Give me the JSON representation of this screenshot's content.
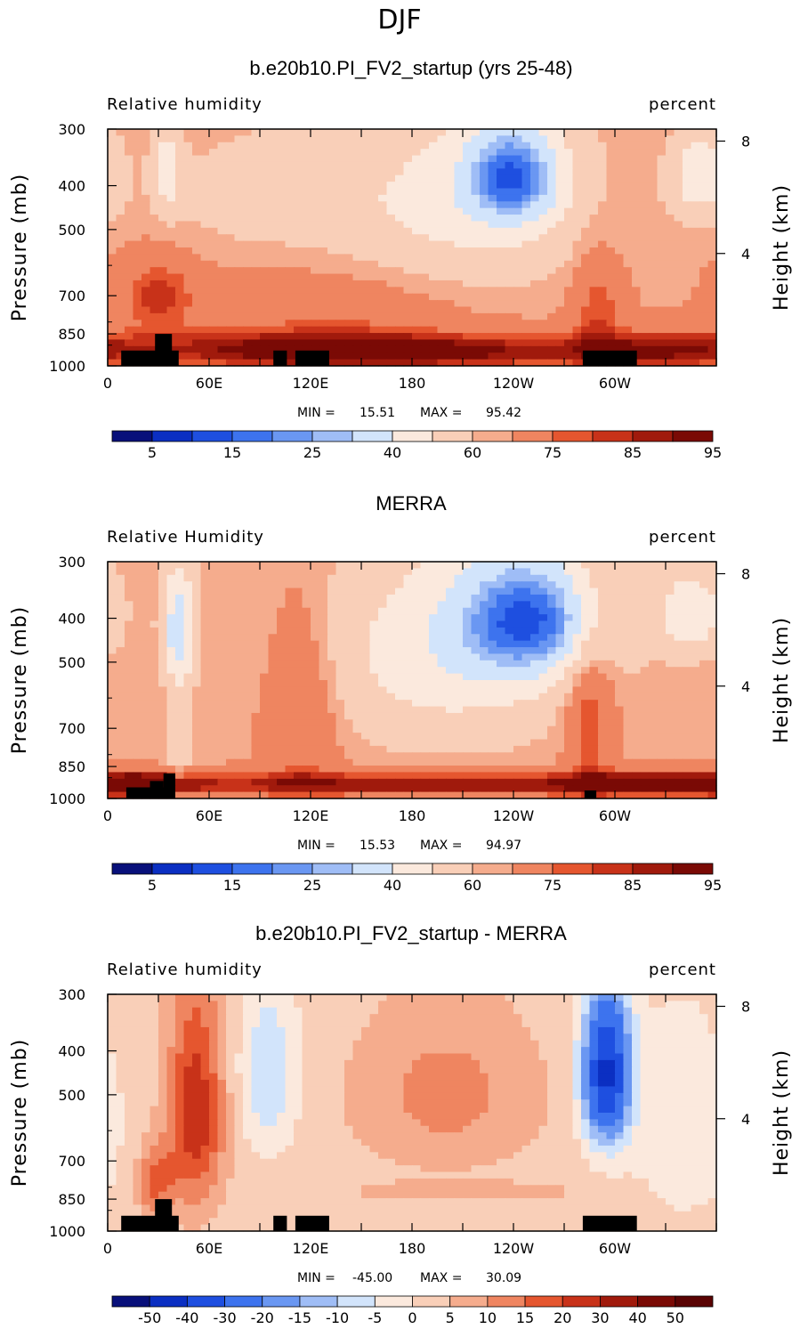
{
  "figure": {
    "main_title": "DJF"
  },
  "colors": {
    "seq_palette": [
      "#08107a",
      "#0b2fc2",
      "#1e4fe0",
      "#3d73ee",
      "#6a97f2",
      "#9fbdf6",
      "#d2e4fb",
      "#fbe9dd",
      "#f9cfb8",
      "#f5ac8d",
      "#ef8560",
      "#e5562f",
      "#c83219",
      "#a01a0c",
      "#7a0a05"
    ],
    "diff_palette": [
      "#08107a",
      "#0b2fc2",
      "#1e4fe0",
      "#3d73ee",
      "#6a97f2",
      "#9fbdf6",
      "#d2e4fb",
      "#fbe9dd",
      "#f9cfb8",
      "#f5ac8d",
      "#ef8560",
      "#e5562f",
      "#c83219",
      "#a01a0c",
      "#7a0a05",
      "#5a0303"
    ],
    "topography": "#000000"
  },
  "chart_data": [
    {
      "type": "heatmap",
      "title": "b.e20b10.PI_FV2_startup (yrs 25-48)",
      "left_label": "Relative humidity",
      "right_label": "percent",
      "ylabel": "Pressure (mb)",
      "ylabel_right": "Height (km)",
      "xticks": [
        {
          "lon": 0,
          "label": "0"
        },
        {
          "lon": 60,
          "label": "60E"
        },
        {
          "lon": 120,
          "label": "120E"
        },
        {
          "lon": 180,
          "label": "180"
        },
        {
          "lon": 240,
          "label": "120W"
        },
        {
          "lon": 300,
          "label": "60W"
        }
      ],
      "xlim": [
        0,
        360
      ],
      "yticks": [
        {
          "p": 300,
          "label": "300"
        },
        {
          "p": 400,
          "label": "400"
        },
        {
          "p": 500,
          "label": "500"
        },
        {
          "p": 700,
          "label": "700"
        },
        {
          "p": 850,
          "label": "850"
        },
        {
          "p": 1000,
          "label": "1000"
        }
      ],
      "ylim": [
        1000,
        300
      ],
      "height_ticks": [
        {
          "km": 8,
          "label": "8"
        },
        {
          "km": 4,
          "label": "4"
        }
      ],
      "min_text": "MIN =",
      "min_value": "15.51",
      "max_text": "MAX =",
      "max_value": "95.42",
      "colorbar_labels": [
        "5",
        "15",
        "25",
        "40",
        "60",
        "75",
        "85",
        "95"
      ],
      "colorbar_levels": [
        5,
        10,
        15,
        20,
        25,
        30,
        40,
        50,
        60,
        65,
        75,
        80,
        85,
        90,
        95
      ],
      "palette": "seq",
      "base_value": 65,
      "anomalies": [
        {
          "lon": 240,
          "p": 380,
          "slon": 20,
          "sp": 70,
          "amp": -38
        },
        {
          "lon": 210,
          "p": 440,
          "slon": 55,
          "sp": 160,
          "amp": -18
        },
        {
          "lon": 350,
          "p": 380,
          "slon": 12,
          "sp": 60,
          "amp": -22
        },
        {
          "lon": 35,
          "p": 370,
          "slon": 6,
          "sp": 60,
          "amp": -18
        },
        {
          "lon": 90,
          "p": 420,
          "slon": 50,
          "sp": 100,
          "amp": -8
        },
        {
          "lon": 200,
          "p": 930,
          "slon": 70,
          "sp": 55,
          "amp": 25
        },
        {
          "lon": 100,
          "p": 920,
          "slon": 60,
          "sp": 60,
          "amp": 22
        },
        {
          "lon": 330,
          "p": 920,
          "slon": 40,
          "sp": 60,
          "amp": 22
        },
        {
          "lon": 30,
          "p": 700,
          "slon": 15,
          "sp": 90,
          "amp": 18
        },
        {
          "lon": 290,
          "p": 750,
          "slon": 10,
          "sp": 150,
          "amp": 15
        },
        {
          "lon": 140,
          "p": 760,
          "slon": 50,
          "sp": 120,
          "amp": 8
        }
      ],
      "topography": [
        {
          "lon1": 8,
          "lon2": 42,
          "p": 925
        },
        {
          "lon1": 28,
          "lon2": 38,
          "p": 850
        },
        {
          "lon1": 98,
          "lon2": 106,
          "p": 925
        },
        {
          "lon1": 111,
          "lon2": 131,
          "p": 925
        },
        {
          "lon1": 281,
          "lon2": 313,
          "p": 925
        }
      ]
    },
    {
      "type": "heatmap",
      "title": "MERRA",
      "left_label": "Relative Humidity",
      "right_label": "percent",
      "ylabel": "Pressure (mb)",
      "ylabel_right": "Height (km)",
      "xticks": [
        {
          "lon": 0,
          "label": "0"
        },
        {
          "lon": 60,
          "label": "60E"
        },
        {
          "lon": 120,
          "label": "120E"
        },
        {
          "lon": 180,
          "label": "180"
        },
        {
          "lon": 240,
          "label": "120W"
        },
        {
          "lon": 300,
          "label": "60W"
        }
      ],
      "xlim": [
        0,
        360
      ],
      "yticks": [
        {
          "p": 300,
          "label": "300"
        },
        {
          "p": 400,
          "label": "400"
        },
        {
          "p": 500,
          "label": "500"
        },
        {
          "p": 700,
          "label": "700"
        },
        {
          "p": 850,
          "label": "850"
        },
        {
          "p": 1000,
          "label": "1000"
        }
      ],
      "ylim": [
        1000,
        300
      ],
      "height_ticks": [
        {
          "km": 8,
          "label": "8"
        },
        {
          "km": 4,
          "label": "4"
        }
      ],
      "min_text": "MIN =",
      "min_value": "15.53",
      "max_text": "MAX =",
      "max_value": "94.97",
      "colorbar_labels": [
        "5",
        "15",
        "25",
        "40",
        "60",
        "75",
        "85",
        "95"
      ],
      "colorbar_levels": [
        5,
        10,
        15,
        20,
        25,
        30,
        40,
        50,
        60,
        65,
        75,
        80,
        85,
        90,
        95
      ],
      "palette": "seq",
      "base_value": 64,
      "anomalies": [
        {
          "lon": 250,
          "p": 400,
          "slon": 30,
          "sp": 90,
          "amp": -40
        },
        {
          "lon": 200,
          "p": 480,
          "slon": 55,
          "sp": 180,
          "amp": -20
        },
        {
          "lon": 42,
          "p": 420,
          "slon": 7,
          "sp": 90,
          "amp": -30
        },
        {
          "lon": 345,
          "p": 390,
          "slon": 15,
          "sp": 60,
          "amp": -22
        },
        {
          "lon": 180,
          "p": 930,
          "slon": 140,
          "sp": 40,
          "amp": 26
        },
        {
          "lon": 20,
          "p": 930,
          "slon": 20,
          "sp": 40,
          "amp": 20
        },
        {
          "lon": 330,
          "p": 930,
          "slon": 40,
          "sp": 40,
          "amp": 22
        },
        {
          "lon": 115,
          "p": 650,
          "slon": 15,
          "sp": 220,
          "amp": 14
        },
        {
          "lon": 285,
          "p": 650,
          "slon": 10,
          "sp": 200,
          "amp": 18
        },
        {
          "lon": 42,
          "p": 750,
          "slon": 5,
          "sp": 150,
          "amp": -12
        }
      ],
      "topography": [
        {
          "lon1": 11,
          "lon2": 40,
          "p": 945
        },
        {
          "lon1": 25,
          "lon2": 33,
          "p": 915
        },
        {
          "lon1": 33,
          "lon2": 40,
          "p": 880
        },
        {
          "lon1": 282,
          "lon2": 289,
          "p": 960
        }
      ]
    },
    {
      "type": "heatmap",
      "title": "b.e20b10.PI_FV2_startup - MERRA",
      "left_label": "Relative humidity",
      "right_label": "percent",
      "ylabel": "Pressure (mb)",
      "ylabel_right": "Height (km)",
      "xticks": [
        {
          "lon": 0,
          "label": "0"
        },
        {
          "lon": 60,
          "label": "60E"
        },
        {
          "lon": 120,
          "label": "120E"
        },
        {
          "lon": 180,
          "label": "180"
        },
        {
          "lon": 240,
          "label": "120W"
        },
        {
          "lon": 300,
          "label": "60W"
        }
      ],
      "xlim": [
        0,
        360
      ],
      "yticks": [
        {
          "p": 300,
          "label": "300"
        },
        {
          "p": 400,
          "label": "400"
        },
        {
          "p": 500,
          "label": "500"
        },
        {
          "p": 700,
          "label": "700"
        },
        {
          "p": 850,
          "label": "850"
        },
        {
          "p": 1000,
          "label": "1000"
        }
      ],
      "ylim": [
        1000,
        300
      ],
      "height_ticks": [
        {
          "km": 8,
          "label": "8"
        },
        {
          "km": 4,
          "label": "4"
        }
      ],
      "min_text": "MIN =",
      "min_value": "-45.00",
      "max_text": "MAX =",
      "max_value": "30.09",
      "colorbar_labels": [
        "-50",
        "-40",
        "-30",
        "-20",
        "-15",
        "-10",
        "-5",
        "0",
        "5",
        "10",
        "15",
        "20",
        "30",
        "40",
        "50"
      ],
      "colorbar_levels": [
        -50,
        -40,
        -30,
        -20,
        -15,
        -10,
        -5,
        0,
        5,
        10,
        15,
        20,
        30,
        40,
        50
      ],
      "palette": "diff",
      "base_value": 2,
      "anomalies": [
        {
          "lon": 295,
          "p": 450,
          "slon": 10,
          "sp": 120,
          "amp": -45
        },
        {
          "lon": 95,
          "p": 450,
          "slon": 12,
          "sp": 130,
          "amp": -12
        },
        {
          "lon": 340,
          "p": 600,
          "slon": 20,
          "sp": 200,
          "amp": -6
        },
        {
          "lon": 52,
          "p": 550,
          "slon": 12,
          "sp": 220,
          "amp": 22
        },
        {
          "lon": 28,
          "p": 780,
          "slon": 8,
          "sp": 100,
          "amp": 14
        },
        {
          "lon": 200,
          "p": 500,
          "slon": 40,
          "sp": 150,
          "amp": 10
        },
        {
          "lon": 210,
          "p": 820,
          "slon": 50,
          "sp": 30,
          "amp": 6
        }
      ],
      "topography": [
        {
          "lon1": 8,
          "lon2": 42,
          "p": 925
        },
        {
          "lon1": 28,
          "lon2": 38,
          "p": 850
        },
        {
          "lon1": 98,
          "lon2": 106,
          "p": 925
        },
        {
          "lon1": 111,
          "lon2": 131,
          "p": 925
        },
        {
          "lon1": 281,
          "lon2": 313,
          "p": 925
        }
      ]
    }
  ]
}
